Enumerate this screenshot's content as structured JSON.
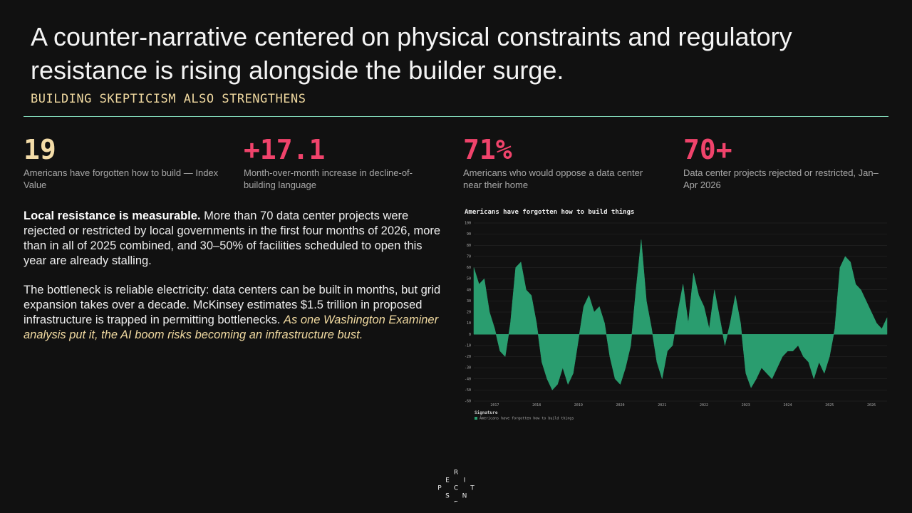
{
  "header": {
    "title": "A counter-narrative centered on physical constraints and regulatory resistance is rising alongside the builder surge.",
    "subtitle": "BUILDING SKEPTICISM ALSO STRENGTHENS"
  },
  "stats": [
    {
      "value": "19",
      "label": "Americans have forgotten how to build — Index Value"
    },
    {
      "value": "+17.1",
      "label": "Month-over-month increase in decline-of-building language"
    },
    {
      "value": "71%",
      "label": "Americans who would oppose a data center near their home"
    },
    {
      "value": "70+",
      "label": "Data center projects rejected or restricted, Jan–Apr 2026"
    }
  ],
  "paragraphs": [
    {
      "lead": "Local resistance is measurable.",
      "text": " More than 70 data center projects were rejected or restricted by local governments in the first four months of 2026, more than in all of 2025 combined, and 30–50% of facilities scheduled to open this year are already stalling."
    },
    {
      "text": "The bottleneck is reliable electricity: data centers can be built in months, but grid expansion takes over a decade. McKinsey estimates $1.5 trillion in proposed infrastructure is trapped in permitting bottlenecks. ",
      "quote": "As one Washington Examiner analysis put it, the AI boom risks becoming an infrastructure bust."
    }
  ],
  "chart_data": {
    "type": "area",
    "title": "Americans have forgotten how to build things",
    "legend_title": "Signature",
    "categories": [
      null,
      null,
      null,
      null,
      "2017",
      null,
      null,
      null,
      null,
      null,
      null,
      null,
      "2018",
      null,
      null,
      null,
      null,
      null,
      null,
      null,
      "2019",
      null,
      null,
      null,
      null,
      null,
      null,
      null,
      "2020",
      null,
      null,
      null,
      null,
      null,
      null,
      null,
      "2021",
      null,
      null,
      null,
      null,
      null,
      null,
      null,
      "2022",
      null,
      null,
      null,
      null,
      null,
      null,
      null,
      "2023",
      null,
      null,
      null,
      null,
      null,
      null,
      null,
      "2024",
      null,
      null,
      null,
      null,
      null,
      null,
      null,
      "2025",
      null,
      null,
      null,
      null,
      null,
      null,
      null,
      "2026",
      null,
      null,
      null
    ],
    "series": [
      {
        "name": "Americans have forgotten how to build things",
        "color": "#2a9d6f",
        "values": [
          60,
          45,
          50,
          20,
          5,
          -15,
          -20,
          10,
          60,
          65,
          40,
          35,
          10,
          -25,
          -40,
          -50,
          -45,
          -30,
          -45,
          -35,
          -5,
          25,
          35,
          20,
          25,
          10,
          -20,
          -40,
          -45,
          -30,
          -10,
          40,
          85,
          30,
          5,
          -25,
          -40,
          -15,
          -10,
          20,
          45,
          10,
          55,
          35,
          25,
          5,
          40,
          15,
          -10,
          10,
          35,
          10,
          -35,
          -48,
          -40,
          -30,
          -35,
          -40,
          -30,
          -20,
          -15,
          -15,
          -10,
          -20,
          -25,
          -40,
          -25,
          -35,
          -20,
          5,
          60,
          70,
          65,
          45,
          40,
          30,
          20,
          10,
          5,
          15
        ]
      }
    ],
    "ylim": [
      -60,
      100
    ],
    "yticks": [
      -60,
      -50,
      -40,
      -30,
      -20,
      -10,
      0,
      10,
      20,
      30,
      40,
      50,
      60,
      70,
      80,
      90,
      100
    ],
    "grid": true
  },
  "logo": [
    "R",
    "E",
    "I",
    "P",
    "C",
    "T",
    "S",
    "N",
    "E"
  ]
}
